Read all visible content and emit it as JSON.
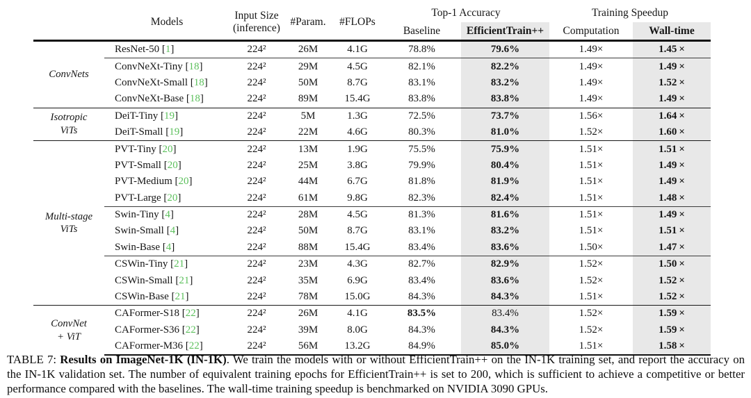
{
  "colors": {
    "citation_green": "#5cc05c",
    "highlight_band": "#e8e8e8",
    "rule": "#111111"
  },
  "header": {
    "models": "Models",
    "input_size_line1": "Input Size",
    "input_size_line2": "(inference)",
    "params": "#Param.",
    "flops": "#FLOPs",
    "top1_group": "Top-1 Accuracy",
    "baseline": "Baseline",
    "efficienttrain": "EfficientTrain++",
    "speedup_group": "Training Speedup",
    "computation": "Computation",
    "walltime": "Wall-time"
  },
  "table": {
    "groups": [
      {
        "label": [
          "ConvNets"
        ],
        "rows": [
          {
            "model": "ResNet-50",
            "ref": "1",
            "input": "224²",
            "params": "26M",
            "flops": "4.1G",
            "baseline": "78.8%",
            "baseline_bold": false,
            "et": "79.6%",
            "et_bold": true,
            "comp": "1.49×",
            "wall": "1.45 ×"
          },
          {
            "model": "ConvNeXt-Tiny",
            "ref": "18",
            "divider_before": true,
            "input": "224²",
            "params": "29M",
            "flops": "4.5G",
            "baseline": "82.1%",
            "baseline_bold": false,
            "et": "82.2%",
            "et_bold": true,
            "comp": "1.49×",
            "wall": "1.49 ×"
          },
          {
            "model": "ConvNeXt-Small",
            "ref": "18",
            "input": "224²",
            "params": "50M",
            "flops": "8.7G",
            "baseline": "83.1%",
            "baseline_bold": false,
            "et": "83.2%",
            "et_bold": true,
            "comp": "1.49×",
            "wall": "1.52 ×"
          },
          {
            "model": "ConvNeXt-Base",
            "ref": "18",
            "input": "224²",
            "params": "89M",
            "flops": "15.4G",
            "baseline": "83.8%",
            "baseline_bold": false,
            "et": "83.8%",
            "et_bold": true,
            "comp": "1.49×",
            "wall": "1.49 ×"
          }
        ]
      },
      {
        "label": [
          "Isotropic",
          "ViTs"
        ],
        "rows": [
          {
            "model": "DeiT-Tiny",
            "ref": "19",
            "input": "224²",
            "params": "5M",
            "flops": "1.3G",
            "baseline": "72.5%",
            "baseline_bold": false,
            "et": "73.7%",
            "et_bold": true,
            "comp": "1.56×",
            "wall": "1.64 ×"
          },
          {
            "model": "DeiT-Small",
            "ref": "19",
            "input": "224²",
            "params": "22M",
            "flops": "4.6G",
            "baseline": "80.3%",
            "baseline_bold": false,
            "et": "81.0%",
            "et_bold": true,
            "comp": "1.52×",
            "wall": "1.60 ×"
          }
        ]
      },
      {
        "label": [
          "Multi-stage",
          "ViTs"
        ],
        "rows": [
          {
            "model": "PVT-Tiny",
            "ref": "20",
            "input": "224²",
            "params": "13M",
            "flops": "1.9G",
            "baseline": "75.5%",
            "baseline_bold": false,
            "et": "75.9%",
            "et_bold": true,
            "comp": "1.51×",
            "wall": "1.51 ×"
          },
          {
            "model": "PVT-Small",
            "ref": "20",
            "input": "224²",
            "params": "25M",
            "flops": "3.8G",
            "baseline": "79.9%",
            "baseline_bold": false,
            "et": "80.4%",
            "et_bold": true,
            "comp": "1.51×",
            "wall": "1.49 ×"
          },
          {
            "model": "PVT-Medium",
            "ref": "20",
            "input": "224²",
            "params": "44M",
            "flops": "6.7G",
            "baseline": "81.8%",
            "baseline_bold": false,
            "et": "81.9%",
            "et_bold": true,
            "comp": "1.51×",
            "wall": "1.49 ×"
          },
          {
            "model": "PVT-Large",
            "ref": "20",
            "input": "224²",
            "params": "61M",
            "flops": "9.8G",
            "baseline": "82.3%",
            "baseline_bold": false,
            "et": "82.4%",
            "et_bold": true,
            "comp": "1.51×",
            "wall": "1.48 ×"
          },
          {
            "model": "Swin-Tiny",
            "ref": "4",
            "divider_before": true,
            "input": "224²",
            "params": "28M",
            "flops": "4.5G",
            "baseline": "81.3%",
            "baseline_bold": false,
            "et": "81.6%",
            "et_bold": true,
            "comp": "1.51×",
            "wall": "1.49 ×"
          },
          {
            "model": "Swin-Small",
            "ref": "4",
            "input": "224²",
            "params": "50M",
            "flops": "8.7G",
            "baseline": "83.1%",
            "baseline_bold": false,
            "et": "83.2%",
            "et_bold": true,
            "comp": "1.51×",
            "wall": "1.51 ×"
          },
          {
            "model": "Swin-Base",
            "ref": "4",
            "input": "224²",
            "params": "88M",
            "flops": "15.4G",
            "baseline": "83.4%",
            "baseline_bold": false,
            "et": "83.6%",
            "et_bold": true,
            "comp": "1.50×",
            "wall": "1.47 ×"
          },
          {
            "model": "CSWin-Tiny",
            "ref": "21",
            "divider_before": true,
            "input": "224²",
            "params": "23M",
            "flops": "4.3G",
            "baseline": "82.7%",
            "baseline_bold": false,
            "et": "82.9%",
            "et_bold": true,
            "comp": "1.52×",
            "wall": "1.50 ×"
          },
          {
            "model": "CSWin-Small",
            "ref": "21",
            "input": "224²",
            "params": "35M",
            "flops": "6.9G",
            "baseline": "83.4%",
            "baseline_bold": false,
            "et": "83.6%",
            "et_bold": true,
            "comp": "1.52×",
            "wall": "1.52 ×"
          },
          {
            "model": "CSWin-Base",
            "ref": "21",
            "input": "224²",
            "params": "78M",
            "flops": "15.0G",
            "baseline": "84.3%",
            "baseline_bold": false,
            "et": "84.3%",
            "et_bold": true,
            "comp": "1.51×",
            "wall": "1.52 ×"
          }
        ]
      },
      {
        "label": [
          "ConvNet",
          "+ ViT"
        ],
        "rows": [
          {
            "model": "CAFormer-S18",
            "ref": "22",
            "input": "224²",
            "params": "26M",
            "flops": "4.1G",
            "baseline": "83.5%",
            "baseline_bold": true,
            "et": "83.4%",
            "et_bold": false,
            "comp": "1.52×",
            "wall": "1.59 ×"
          },
          {
            "model": "CAFormer-S36",
            "ref": "22",
            "input": "224²",
            "params": "39M",
            "flops": "8.0G",
            "baseline": "84.3%",
            "baseline_bold": false,
            "et": "84.3%",
            "et_bold": true,
            "comp": "1.52×",
            "wall": "1.59 ×"
          },
          {
            "model": "CAFormer-M36",
            "ref": "22",
            "input": "224²",
            "params": "56M",
            "flops": "13.2G",
            "baseline": "84.9%",
            "baseline_bold": false,
            "et": "85.0%",
            "et_bold": true,
            "comp": "1.51×",
            "wall": "1.58 ×"
          }
        ]
      }
    ]
  },
  "caption": {
    "prefix": "TABLE 7:",
    "bold_part": "Results on ImageNet-1K (IN-1K)",
    "rest": ". We train the models with or without EfficientTrain++ on the IN-1K training set, and report the accuracy on the IN-1K validation set. The number of equivalent training epochs for EfficientTrain++ is set to 200, which is sufficient to achieve a competitive or better performance compared with the baselines. The wall-time training speedup is benchmarked on NVIDIA 3090 GPUs."
  }
}
